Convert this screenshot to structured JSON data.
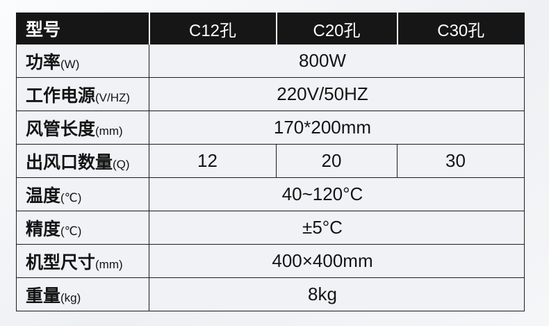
{
  "page": {
    "background_color": "#f0f2f4"
  },
  "table": {
    "colors": {
      "header_bg": "#161616",
      "header_text": "#ffffff",
      "header_divider": "#ffffff",
      "cell_bg": "#f0f2f5",
      "border": "#1c1c1c",
      "value_text": "#141414"
    },
    "header": {
      "label": "型号",
      "columns": [
        "C12孔",
        "C20孔",
        "C30孔"
      ]
    },
    "rows": [
      {
        "label": "功率",
        "unit": "(W)",
        "value": "800W"
      },
      {
        "label": "工作电源",
        "unit": "(V/HZ)",
        "value": "220V/50HZ"
      },
      {
        "label": "风管长度",
        "unit": "(mm)",
        "value": "170*200mm"
      },
      {
        "label": "出风口数量",
        "unit": "(Q)",
        "values": [
          "12",
          "20",
          "30"
        ]
      },
      {
        "label": "温度",
        "unit": "(℃)",
        "value": "40~120°C"
      },
      {
        "label": "精度",
        "unit": "(℃)",
        "value": "±5°C"
      },
      {
        "label": "机型尺寸",
        "unit": "(mm)",
        "value": "400×400mm"
      },
      {
        "label": "重量",
        "unit": "(kg)",
        "value": "8kg"
      }
    ]
  }
}
